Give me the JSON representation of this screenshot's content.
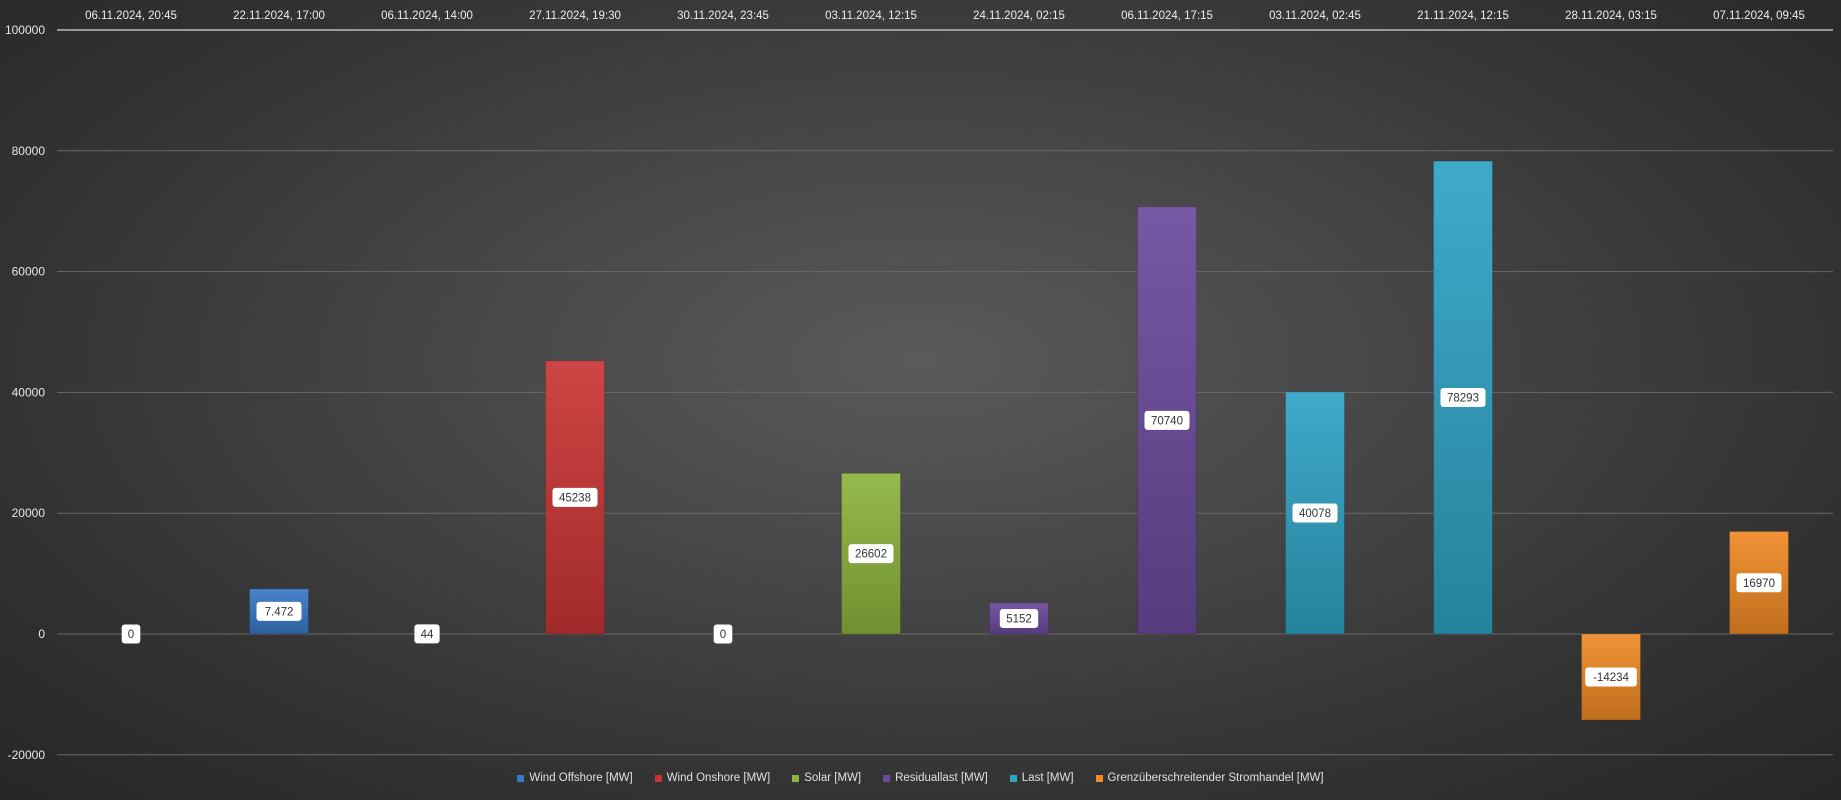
{
  "chart_data": {
    "type": "bar",
    "categories": [
      "06.11.2024, 20:45",
      "22.11.2024, 17:00",
      "06.11.2024, 14:00",
      "27.11.2024, 19:30",
      "30.11.2024, 23:45",
      "03.11.2024, 12:15",
      "24.11.2024, 02:15",
      "06.11.2024, 17:15",
      "03.11.2024, 02:45",
      "21.11.2024, 12:15",
      "28.11.2024, 03:15",
      "07.11.2024, 09:45"
    ],
    "values": [
      0,
      7472,
      44,
      45238,
      0,
      26602,
      5152,
      70740,
      40078,
      78293,
      -14234,
      16970
    ],
    "data_labels": [
      "0",
      "7.472",
      "44",
      "45238",
      "0",
      "26602",
      "5152",
      "70740",
      "40078",
      "78293",
      "-14234",
      "16970"
    ],
    "series_index": [
      0,
      0,
      1,
      1,
      2,
      2,
      3,
      3,
      4,
      4,
      5,
      5
    ],
    "series": [
      {
        "name": "Wind Offshore [MW]",
        "color": "#3a78c8"
      },
      {
        "name": "Wind Onshore [MW]",
        "color": "#c93534"
      },
      {
        "name": "Solar [MW]",
        "color": "#8cb43c"
      },
      {
        "name": "Residuallast [MW]",
        "color": "#6b4a9c"
      },
      {
        "name": "Last [MW]",
        "color": "#2ea3c4"
      },
      {
        "name": "Grenzüberschreitender Stromhandel [MW]",
        "color": "#f08a24"
      }
    ],
    "ylim": [
      -20000,
      100000
    ],
    "yticks": [
      "100000",
      "80000",
      "60000",
      "40000",
      "20000",
      "0",
      "-20000"
    ],
    "ytick_values": [
      100000,
      80000,
      60000,
      40000,
      20000,
      0,
      -20000
    ],
    "x_axis_position": "top",
    "grid": true,
    "legend_position": "bottom"
  }
}
